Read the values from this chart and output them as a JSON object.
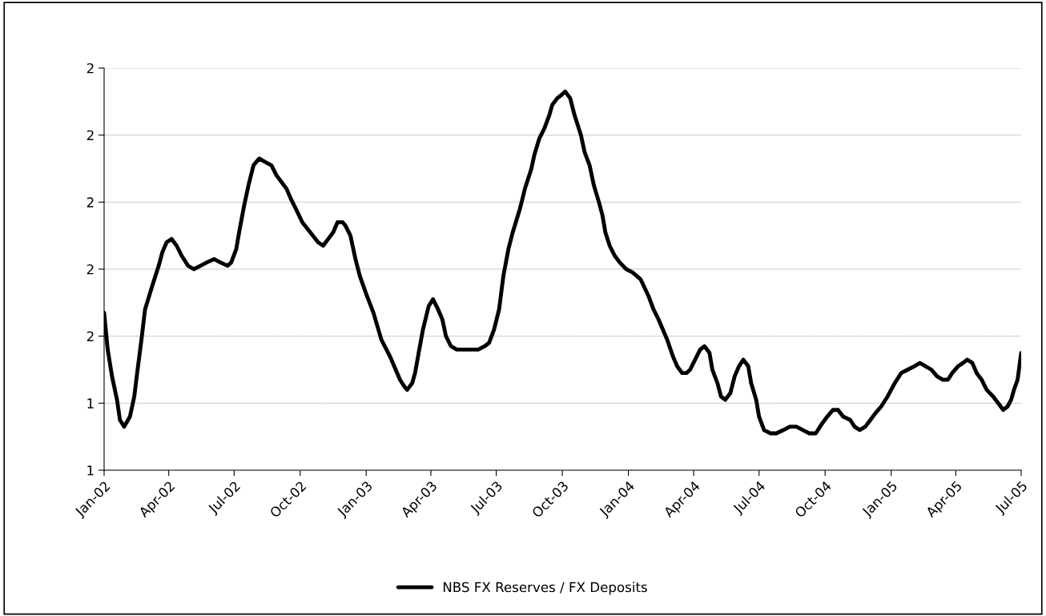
{
  "chart_data": {
    "type": "line",
    "legend": "bottom",
    "grid": "y",
    "marker": "none",
    "line_style": "solid",
    "xlim": [
      "2002-01-01",
      "2005-07-01"
    ],
    "xticks": [
      {
        "value": "2002-01-01",
        "label": "Jan-02"
      },
      {
        "value": "2002-04-01",
        "label": "Apr-02"
      },
      {
        "value": "2002-07-01",
        "label": "Jul-02"
      },
      {
        "value": "2002-10-01",
        "label": "Oct-02"
      },
      {
        "value": "2003-01-01",
        "label": "Jan-03"
      },
      {
        "value": "2003-04-01",
        "label": "Apr-03"
      },
      {
        "value": "2003-07-01",
        "label": "Jul-03"
      },
      {
        "value": "2003-10-01",
        "label": "Oct-03"
      },
      {
        "value": "2004-01-01",
        "label": "Jan-04"
      },
      {
        "value": "2004-04-01",
        "label": "Apr-04"
      },
      {
        "value": "2004-07-01",
        "label": "Jul-04"
      },
      {
        "value": "2004-10-01",
        "label": "Oct-04"
      },
      {
        "value": "2005-01-01",
        "label": "Jan-05"
      },
      {
        "value": "2005-04-01",
        "label": "Apr-05"
      },
      {
        "value": "2005-07-01",
        "label": "Jul-05"
      }
    ],
    "ylim": [
      1.2,
      2.4
    ],
    "yticks": [
      {
        "value": 1.2,
        "label": "1"
      },
      {
        "value": 1.4,
        "label": "1"
      },
      {
        "value": 1.6,
        "label": "2"
      },
      {
        "value": 1.8,
        "label": "2"
      },
      {
        "value": 2.0,
        "label": "2"
      },
      {
        "value": 2.2,
        "label": "2"
      },
      {
        "value": 2.4,
        "label": "2"
      }
    ],
    "series": [
      {
        "name": "NBS FX Reserves / FX Deposits",
        "color": "#000000",
        "x": [
          "2002-01-01",
          "2002-01-06",
          "2002-01-12",
          "2002-01-19",
          "2002-01-23",
          "2002-01-29",
          "2002-02-06",
          "2002-02-12",
          "2002-02-16",
          "2002-02-22",
          "2002-02-27",
          "2002-03-09",
          "2002-03-18",
          "2002-03-23",
          "2002-03-29",
          "2002-04-05",
          "2002-04-12",
          "2002-04-19",
          "2002-04-28",
          "2002-05-06",
          "2002-05-15",
          "2002-05-24",
          "2002-06-03",
          "2002-06-12",
          "2002-06-22",
          "2002-06-27",
          "2002-07-04",
          "2002-07-08",
          "2002-07-15",
          "2002-07-21",
          "2002-07-28",
          "2002-08-05",
          "2002-08-13",
          "2002-08-22",
          "2002-08-29",
          "2002-09-05",
          "2002-09-12",
          "2002-09-18",
          "2002-09-25",
          "2002-10-04",
          "2002-10-15",
          "2002-10-26",
          "2002-11-02",
          "2002-11-09",
          "2002-11-16",
          "2002-11-22",
          "2002-11-29",
          "2002-12-03",
          "2002-12-10",
          "2002-12-17",
          "2002-12-23",
          "2003-01-02",
          "2003-01-11",
          "2003-01-22",
          "2003-02-03",
          "2003-02-11",
          "2003-02-17",
          "2003-02-23",
          "2003-02-27",
          "2003-03-06",
          "2003-03-10",
          "2003-03-15",
          "2003-03-21",
          "2003-03-29",
          "2003-04-04",
          "2003-04-11",
          "2003-04-17",
          "2003-04-22",
          "2003-04-29",
          "2003-05-07",
          "2003-05-16",
          "2003-05-27",
          "2003-06-06",
          "2003-06-15",
          "2003-06-21",
          "2003-06-28",
          "2003-07-05",
          "2003-07-11",
          "2003-07-18",
          "2003-07-24",
          "2003-08-03",
          "2003-08-10",
          "2003-08-19",
          "2003-08-23",
          "2003-08-30",
          "2003-09-06",
          "2003-09-13",
          "2003-09-17",
          "2003-09-24",
          "2003-09-30",
          "2003-10-05",
          "2003-10-12",
          "2003-10-18",
          "2003-10-27",
          "2003-11-01",
          "2003-11-08",
          "2003-11-14",
          "2003-11-21",
          "2003-11-26",
          "2003-11-30",
          "2003-12-06",
          "2003-12-13",
          "2003-12-20",
          "2003-12-29",
          "2004-01-07",
          "2004-01-18",
          "2004-01-29",
          "2004-02-05",
          "2004-02-12",
          "2004-02-18",
          "2004-02-24",
          "2004-03-03",
          "2004-03-09",
          "2004-03-16",
          "2004-03-22",
          "2004-03-27",
          "2004-04-03",
          "2004-04-10",
          "2004-04-16",
          "2004-04-23",
          "2004-04-27",
          "2004-05-04",
          "2004-05-09",
          "2004-05-15",
          "2004-05-22",
          "2004-05-28",
          "2004-06-03",
          "2004-06-09",
          "2004-06-16",
          "2004-06-20",
          "2004-06-27",
          "2004-07-01",
          "2004-07-08",
          "2004-07-17",
          "2004-07-25",
          "2004-08-04",
          "2004-08-13",
          "2004-08-22",
          "2004-08-31",
          "2004-09-09",
          "2004-09-18",
          "2004-09-27",
          "2004-10-04",
          "2004-10-12",
          "2004-10-19",
          "2004-10-26",
          "2004-11-05",
          "2004-11-11",
          "2004-11-18",
          "2004-11-26",
          "2004-12-03",
          "2004-12-10",
          "2004-12-18",
          "2004-12-27",
          "2005-01-06",
          "2005-01-15",
          "2005-01-24",
          "2005-02-02",
          "2005-02-10",
          "2005-02-18",
          "2005-02-26",
          "2005-03-06",
          "2005-03-14",
          "2005-03-21",
          "2005-03-27",
          "2005-04-04",
          "2005-04-11",
          "2005-04-17",
          "2005-04-24",
          "2005-04-30",
          "2005-05-07",
          "2005-05-14",
          "2005-05-23",
          "2005-05-30",
          "2005-06-06",
          "2005-06-12",
          "2005-06-17",
          "2005-06-21",
          "2005-06-26",
          "2005-07-01"
        ],
        "values": [
          1.67,
          1.56,
          1.48,
          1.41,
          1.35,
          1.33,
          1.36,
          1.42,
          1.49,
          1.59,
          1.68,
          1.75,
          1.81,
          1.85,
          1.88,
          1.89,
          1.87,
          1.84,
          1.81,
          1.8,
          1.81,
          1.82,
          1.83,
          1.82,
          1.81,
          1.82,
          1.86,
          1.91,
          1.99,
          2.05,
          2.11,
          2.13,
          2.12,
          2.11,
          2.08,
          2.06,
          2.04,
          2.01,
          1.98,
          1.94,
          1.91,
          1.88,
          1.87,
          1.89,
          1.91,
          1.94,
          1.94,
          1.93,
          1.9,
          1.83,
          1.78,
          1.72,
          1.67,
          1.59,
          1.54,
          1.5,
          1.47,
          1.45,
          1.44,
          1.46,
          1.49,
          1.55,
          1.62,
          1.69,
          1.71,
          1.68,
          1.65,
          1.6,
          1.57,
          1.56,
          1.56,
          1.56,
          1.56,
          1.57,
          1.58,
          1.62,
          1.68,
          1.78,
          1.86,
          1.91,
          1.98,
          2.04,
          2.1,
          2.14,
          2.19,
          2.22,
          2.26,
          2.29,
          2.31,
          2.32,
          2.33,
          2.31,
          2.26,
          2.2,
          2.15,
          2.11,
          2.05,
          2.0,
          1.96,
          1.91,
          1.87,
          1.84,
          1.82,
          1.8,
          1.79,
          1.77,
          1.72,
          1.68,
          1.65,
          1.62,
          1.59,
          1.54,
          1.51,
          1.49,
          1.49,
          1.5,
          1.53,
          1.56,
          1.57,
          1.55,
          1.5,
          1.46,
          1.42,
          1.41,
          1.43,
          1.48,
          1.51,
          1.53,
          1.51,
          1.46,
          1.41,
          1.36,
          1.32,
          1.31,
          1.31,
          1.32,
          1.33,
          1.33,
          1.32,
          1.31,
          1.31,
          1.34,
          1.36,
          1.38,
          1.38,
          1.36,
          1.35,
          1.33,
          1.32,
          1.33,
          1.35,
          1.37,
          1.39,
          1.42,
          1.46,
          1.49,
          1.5,
          1.51,
          1.52,
          1.51,
          1.5,
          1.48,
          1.47,
          1.47,
          1.49,
          1.51,
          1.52,
          1.53,
          1.52,
          1.49,
          1.47,
          1.44,
          1.42,
          1.4,
          1.38,
          1.39,
          1.41,
          1.44,
          1.47,
          1.55
        ]
      }
    ]
  }
}
